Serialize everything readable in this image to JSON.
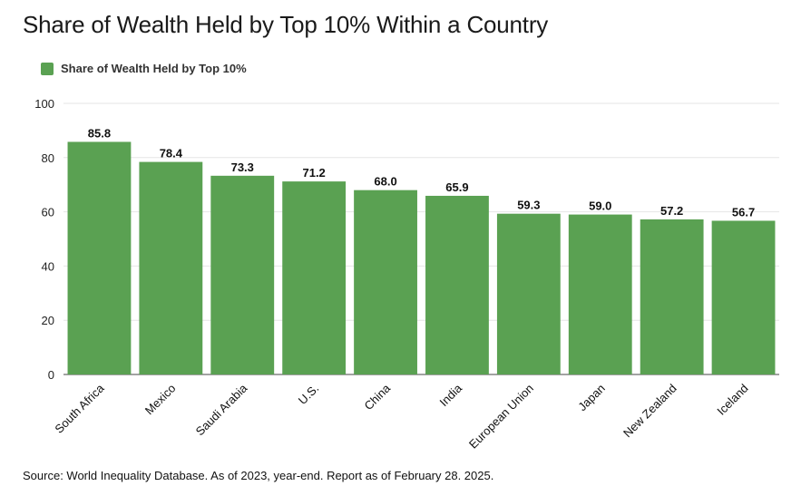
{
  "chart_data": {
    "type": "bar",
    "title": "Share of Wealth Held by Top 10% Within a Country",
    "categories": [
      "South Africa",
      "Mexico",
      "Saudi Arabia",
      "U.S.",
      "China",
      "India",
      "European Union",
      "Japan",
      "New Zealand",
      "Iceland"
    ],
    "series": [
      {
        "name": "Share of Wealth Held by Top 10%",
        "values": [
          85.8,
          78.4,
          73.3,
          71.2,
          68.0,
          65.9,
          59.3,
          59.0,
          57.2,
          56.7
        ],
        "labels": [
          "85.8",
          "78.4",
          "73.3",
          "71.2",
          "68.0",
          "65.9",
          "59.3",
          "59.0",
          "57.2",
          "56.7"
        ],
        "color": "#5aa152"
      }
    ],
    "ylim": [
      0,
      100
    ],
    "yticks": [
      "0",
      "20",
      "40",
      "60",
      "80",
      "100"
    ],
    "grid": true,
    "legend": "top-left",
    "source": "Source: World Inequality Database. As of 2023, year-end. Report as of February 28. 2025."
  }
}
